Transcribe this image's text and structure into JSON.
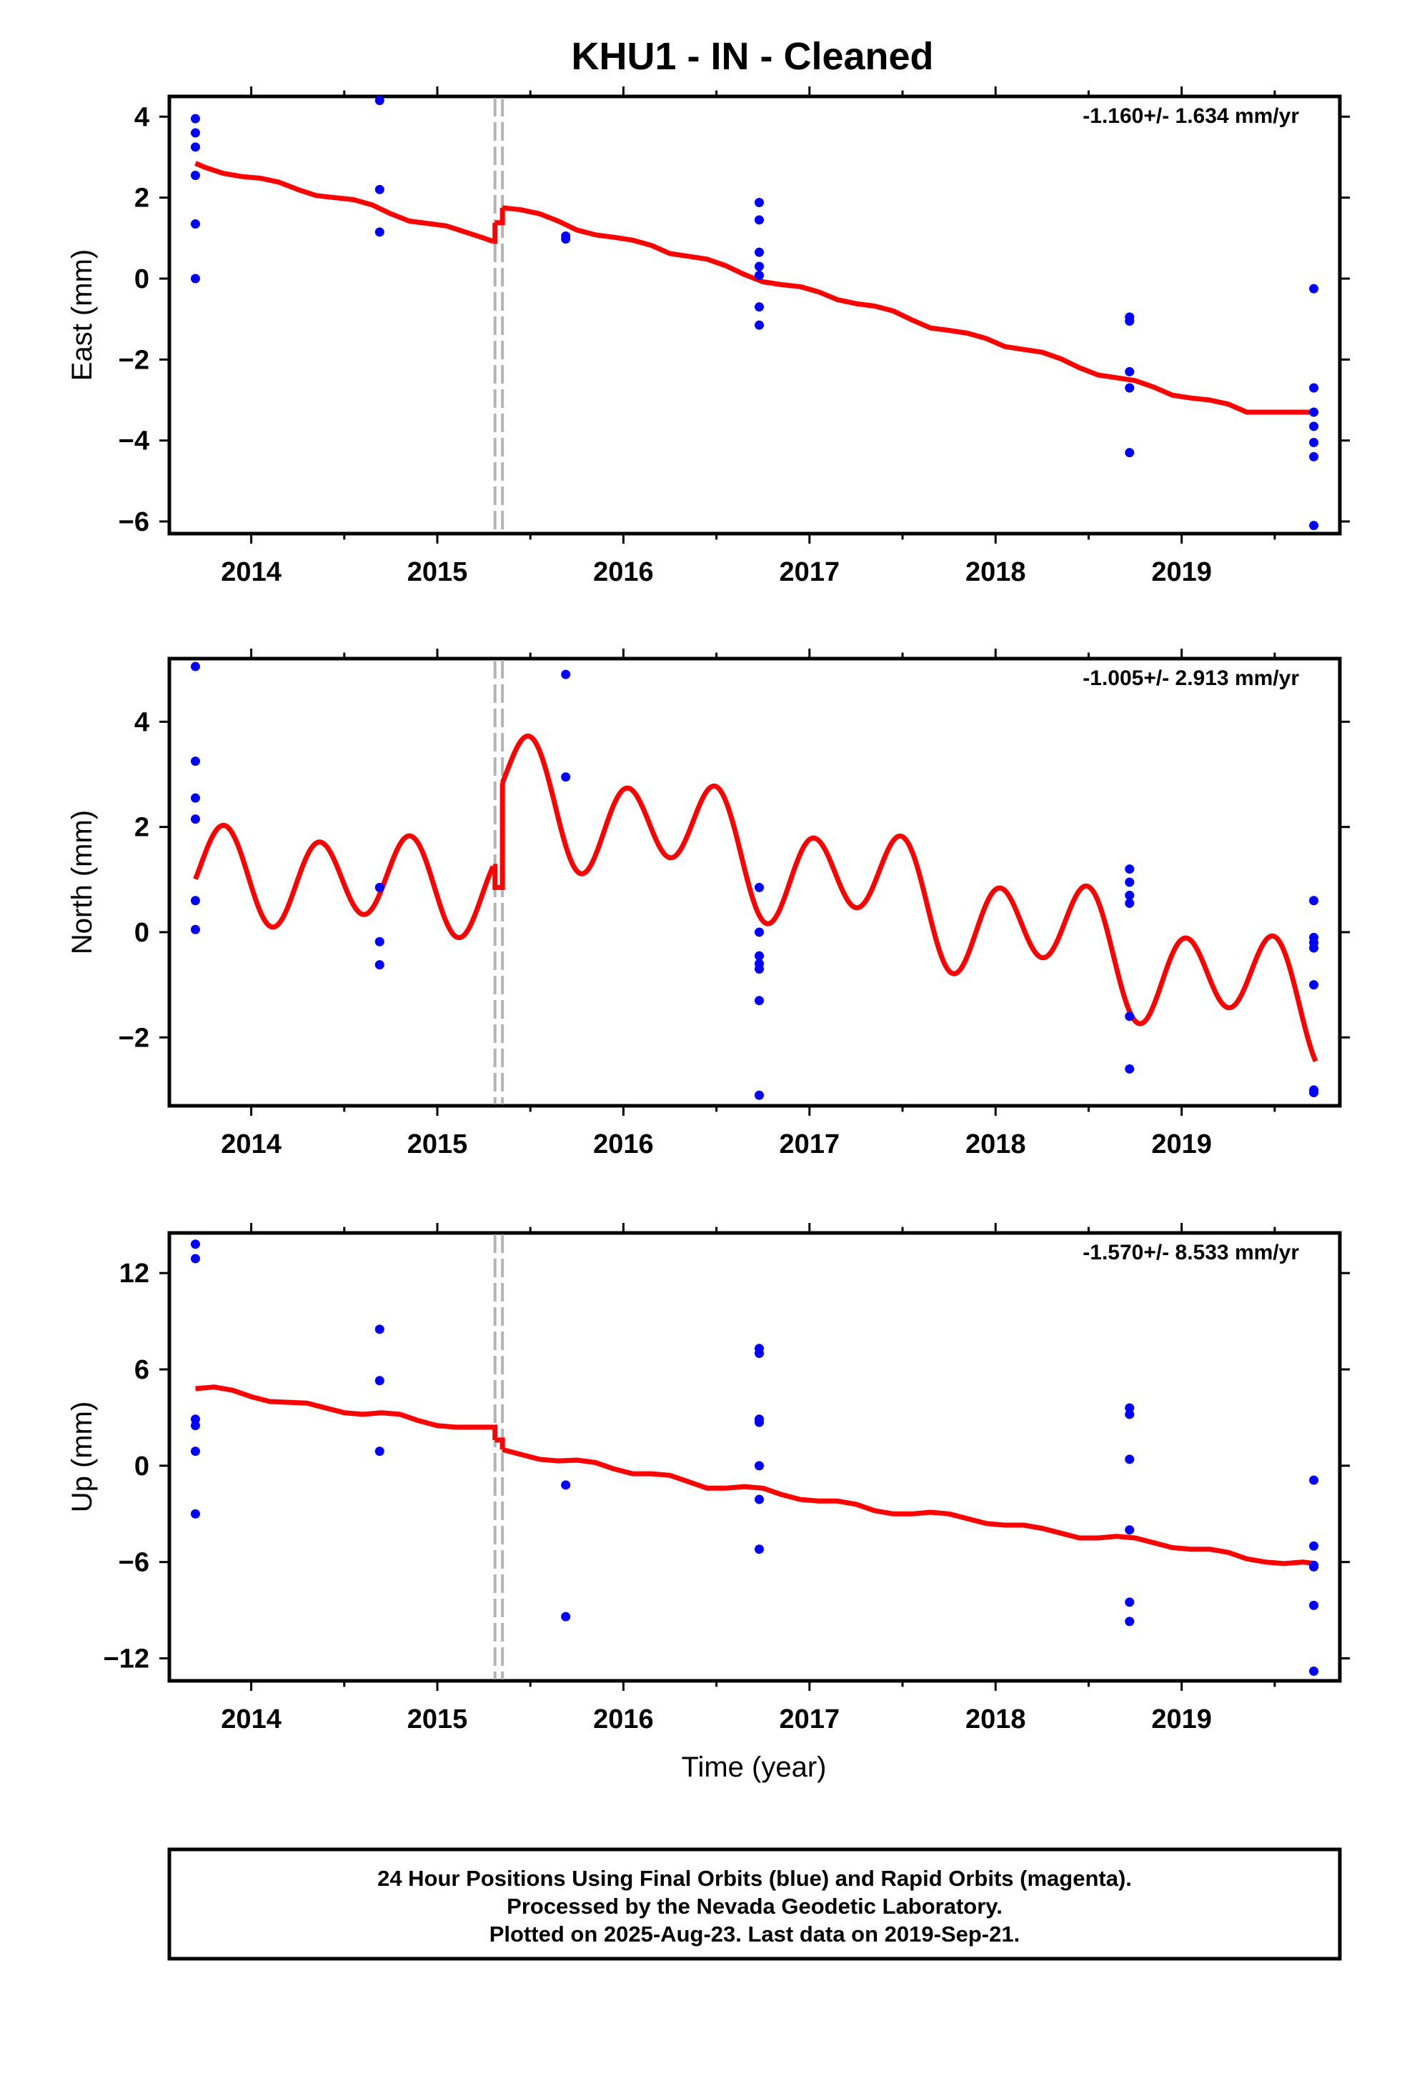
{
  "title": "KHU1  - IN - Cleaned",
  "xlabel": "Time (year)",
  "footer": {
    "lines": [
      "24 Hour Positions Using Final Orbits (blue) and Rapid Orbits (magenta).",
      "Processed by the Nevada Geodetic Laboratory.",
      "Plotted on 2025-Aug-23. Last data on 2019-Sep-21."
    ]
  },
  "colors": {
    "points": "#0000ff",
    "model": "#ff0000",
    "offset_lines": "#b4b4b4",
    "frame": "#000000"
  },
  "chart_data": [
    {
      "type": "scatter",
      "name": "east",
      "ylabel": "East (mm)",
      "rate_label": "-1.160+/- 1.634 mm/yr",
      "xlim": [
        2013.56,
        2019.85
      ],
      "ylim": [
        -6.3,
        4.5
      ],
      "x_ticks": [
        2014,
        2015,
        2016,
        2017,
        2018,
        2019
      ],
      "x_tick_labels": [
        "2014",
        "2015",
        "2016",
        "2017",
        "2018",
        "2019"
      ],
      "y_ticks": [
        -6,
        -4,
        -2,
        0,
        2,
        4
      ],
      "y_tick_labels": [
        "−6",
        "−4",
        "−2",
        "0",
        "2",
        "4"
      ],
      "offset_epochs": [
        2015.31,
        2015.35
      ],
      "points": {
        "x": [
          2013.7,
          2013.7,
          2013.7,
          2013.7,
          2013.7,
          2013.7,
          2014.69,
          2014.69,
          2014.69,
          2015.69,
          2015.69,
          2016.73,
          2016.73,
          2016.73,
          2016.73,
          2016.73,
          2016.73,
          2016.73,
          2018.72,
          2018.72,
          2018.72,
          2018.72,
          2018.72,
          2019.71,
          2019.71,
          2019.71,
          2019.71,
          2019.71,
          2019.71,
          2019.71
        ],
        "y": [
          3.95,
          3.6,
          3.25,
          2.55,
          1.35,
          0.0,
          4.4,
          2.2,
          1.15,
          1.05,
          0.98,
          1.88,
          1.45,
          0.65,
          0.3,
          0.08,
          -0.7,
          -1.15,
          -0.95,
          -1.05,
          -2.3,
          -2.7,
          -4.3,
          -0.25,
          -2.7,
          -3.3,
          -3.65,
          -4.05,
          -4.4,
          -6.1
        ]
      },
      "model_segments": [
        {
          "x": [
            2013.7,
            2013.75,
            2013.85,
            2013.95,
            2014.05,
            2014.15,
            2014.25,
            2014.35,
            2014.45,
            2014.55,
            2014.65,
            2014.75,
            2014.85,
            2014.95,
            2015.05,
            2015.15,
            2015.25,
            2015.3
          ],
          "y": [
            2.85,
            2.75,
            2.6,
            2.52,
            2.48,
            2.38,
            2.2,
            2.05,
            2.0,
            1.95,
            1.82,
            1.6,
            1.42,
            1.36,
            1.3,
            1.15,
            1.0,
            0.92
          ]
        },
        {
          "x": [
            2015.31,
            2015.34
          ],
          "y": [
            1.38,
            1.38
          ]
        },
        {
          "x": [
            2015.35,
            2015.45,
            2015.55,
            2015.65,
            2015.75,
            2015.85,
            2015.95,
            2016.05,
            2016.15,
            2016.25,
            2016.35,
            2016.45,
            2016.55,
            2016.65,
            2016.75,
            2016.85,
            2016.95,
            2017.05,
            2017.15,
            2017.25,
            2017.35,
            2017.45,
            2017.55,
            2017.65,
            2017.75,
            2017.85,
            2017.95,
            2018.05,
            2018.15,
            2018.25,
            2018.35,
            2018.45,
            2018.55,
            2018.65,
            2018.75,
            2018.85,
            2018.95,
            2019.05,
            2019.15,
            2019.25,
            2019.35,
            2019.45,
            2019.55,
            2019.65,
            2019.72
          ],
          "y": [
            1.75,
            1.7,
            1.6,
            1.42,
            1.2,
            1.08,
            1.02,
            0.95,
            0.82,
            0.62,
            0.55,
            0.48,
            0.32,
            0.1,
            -0.08,
            -0.15,
            -0.2,
            -0.33,
            -0.52,
            -0.62,
            -0.68,
            -0.8,
            -1.02,
            -1.22,
            -1.28,
            -1.35,
            -1.48,
            -1.68,
            -1.75,
            -1.82,
            -1.98,
            -2.2,
            -2.38,
            -2.45,
            -2.52,
            -2.68,
            -2.88,
            -2.95,
            -3.0,
            -3.1,
            -3.3,
            -3.3,
            -3.3,
            -3.3,
            -3.3
          ]
        }
      ]
    },
    {
      "type": "scatter",
      "name": "north",
      "ylabel": "North (mm)",
      "rate_label": "-1.005+/- 2.913 mm/yr",
      "xlim": [
        2013.56,
        2019.85
      ],
      "ylim": [
        -3.3,
        5.2
      ],
      "x_ticks": [
        2014,
        2015,
        2016,
        2017,
        2018,
        2019
      ],
      "x_tick_labels": [
        "2014",
        "2015",
        "2016",
        "2017",
        "2018",
        "2019"
      ],
      "y_ticks": [
        -2,
        0,
        2,
        4
      ],
      "y_tick_labels": [
        "−2",
        "0",
        "2",
        "4"
      ],
      "offset_epochs": [
        2015.31,
        2015.35
      ],
      "points": {
        "x": [
          2013.7,
          2013.7,
          2013.7,
          2013.7,
          2013.7,
          2013.7,
          2014.69,
          2014.69,
          2014.69,
          2015.69,
          2015.69,
          2016.73,
          2016.73,
          2016.73,
          2016.73,
          2016.73,
          2016.73,
          2016.73,
          2018.72,
          2018.72,
          2018.72,
          2018.72,
          2018.72,
          2018.72,
          2019.71,
          2019.71,
          2019.71,
          2019.71,
          2019.71,
          2019.71,
          2019.71
        ],
        "y": [
          5.05,
          3.25,
          2.55,
          2.15,
          0.6,
          0.05,
          0.85,
          -0.18,
          -0.62,
          4.9,
          2.95,
          0.85,
          0.0,
          -0.45,
          -0.7,
          -1.3,
          -3.1,
          -0.6,
          1.2,
          0.95,
          0.7,
          0.55,
          -1.6,
          -2.6,
          0.6,
          -0.1,
          -0.3,
          -1.0,
          -3.0,
          -3.05,
          -0.2
        ]
      },
      "model": {
        "period": 1.0,
        "seg1": {
          "t0": 2013.7,
          "t1": 2015.3,
          "t_ref": 2013.7,
          "offset": 1.15,
          "trend": -0.2,
          "amp_annual": 0.2,
          "amp_semi": 0.8,
          "phase_semi": 2013.86
        },
        "mid": {
          "t0": 2015.31,
          "t1": 2015.34,
          "y": 0.85
        },
        "seg2": {
          "t0": 2015.35,
          "t1": 2019.72,
          "t_ref": 2015.35,
          "offset": 2.75,
          "trend": -0.95,
          "amp_annual": 0.45,
          "amp_semi": 0.85,
          "phase_semi": 2015.51
        }
      }
    },
    {
      "type": "scatter",
      "name": "up",
      "ylabel": "Up (mm)",
      "rate_label": "-1.570+/- 8.533 mm/yr",
      "xlim": [
        2013.56,
        2019.85
      ],
      "ylim": [
        -13.4,
        14.5
      ],
      "x_ticks": [
        2014,
        2015,
        2016,
        2017,
        2018,
        2019
      ],
      "x_tick_labels": [
        "2014",
        "2015",
        "2016",
        "2017",
        "2018",
        "2019"
      ],
      "y_ticks": [
        -12,
        -6,
        0,
        6,
        12
      ],
      "y_tick_labels": [
        "−12",
        "−6",
        "0",
        "6",
        "12"
      ],
      "offset_epochs": [
        2015.31,
        2015.35
      ],
      "points": {
        "x": [
          2013.7,
          2013.7,
          2013.7,
          2013.7,
          2013.7,
          2013.7,
          2014.69,
          2014.69,
          2014.69,
          2015.69,
          2015.69,
          2016.73,
          2016.73,
          2016.73,
          2016.73,
          2016.73,
          2016.73,
          2016.73,
          2018.72,
          2018.72,
          2018.72,
          2018.72,
          2018.72,
          2018.72,
          2019.71,
          2019.71,
          2019.71,
          2019.71,
          2019.71,
          2019.71
        ],
        "y": [
          13.8,
          12.9,
          2.9,
          2.5,
          0.9,
          -3.0,
          8.5,
          5.3,
          0.9,
          -1.2,
          -9.4,
          7.3,
          7.0,
          2.9,
          2.7,
          0.0,
          -2.1,
          -5.2,
          3.6,
          3.2,
          0.4,
          -4.0,
          -8.5,
          -9.7,
          -0.9,
          -5.0,
          -6.2,
          -8.7,
          -12.8,
          -6.3
        ]
      },
      "model_segments": [
        {
          "x": [
            2013.7,
            2013.8,
            2013.9,
            2014.0,
            2014.1,
            2014.2,
            2014.3,
            2014.4,
            2014.5,
            2014.6,
            2014.7,
            2014.8,
            2014.9,
            2015.0,
            2015.1,
            2015.2,
            2015.3
          ],
          "y": [
            4.8,
            4.9,
            4.7,
            4.3,
            4.0,
            3.95,
            3.9,
            3.6,
            3.3,
            3.2,
            3.3,
            3.2,
            2.8,
            2.5,
            2.4,
            2.4,
            2.4
          ]
        },
        {
          "x": [
            2015.31,
            2015.34
          ],
          "y": [
            1.6,
            1.6
          ]
        },
        {
          "x": [
            2015.35,
            2015.45,
            2015.55,
            2015.65,
            2015.75,
            2015.85,
            2015.95,
            2016.05,
            2016.15,
            2016.25,
            2016.35,
            2016.45,
            2016.55,
            2016.65,
            2016.75,
            2016.85,
            2016.95,
            2017.05,
            2017.15,
            2017.25,
            2017.35,
            2017.45,
            2017.55,
            2017.65,
            2017.75,
            2017.85,
            2017.95,
            2018.05,
            2018.15,
            2018.25,
            2018.35,
            2018.45,
            2018.55,
            2018.65,
            2018.75,
            2018.85,
            2018.95,
            2019.05,
            2019.15,
            2019.25,
            2019.35,
            2019.45,
            2019.55,
            2019.65,
            2019.72
          ],
          "y": [
            1.0,
            0.7,
            0.4,
            0.3,
            0.35,
            0.2,
            -0.2,
            -0.5,
            -0.5,
            -0.6,
            -1.0,
            -1.4,
            -1.4,
            -1.3,
            -1.4,
            -1.8,
            -2.1,
            -2.2,
            -2.2,
            -2.4,
            -2.8,
            -3.0,
            -3.0,
            -2.9,
            -3.0,
            -3.3,
            -3.6,
            -3.7,
            -3.7,
            -3.9,
            -4.2,
            -4.5,
            -4.5,
            -4.4,
            -4.5,
            -4.8,
            -5.1,
            -5.2,
            -5.2,
            -5.4,
            -5.8,
            -6.0,
            -6.1,
            -6.0,
            -6.1
          ]
        }
      ]
    }
  ]
}
